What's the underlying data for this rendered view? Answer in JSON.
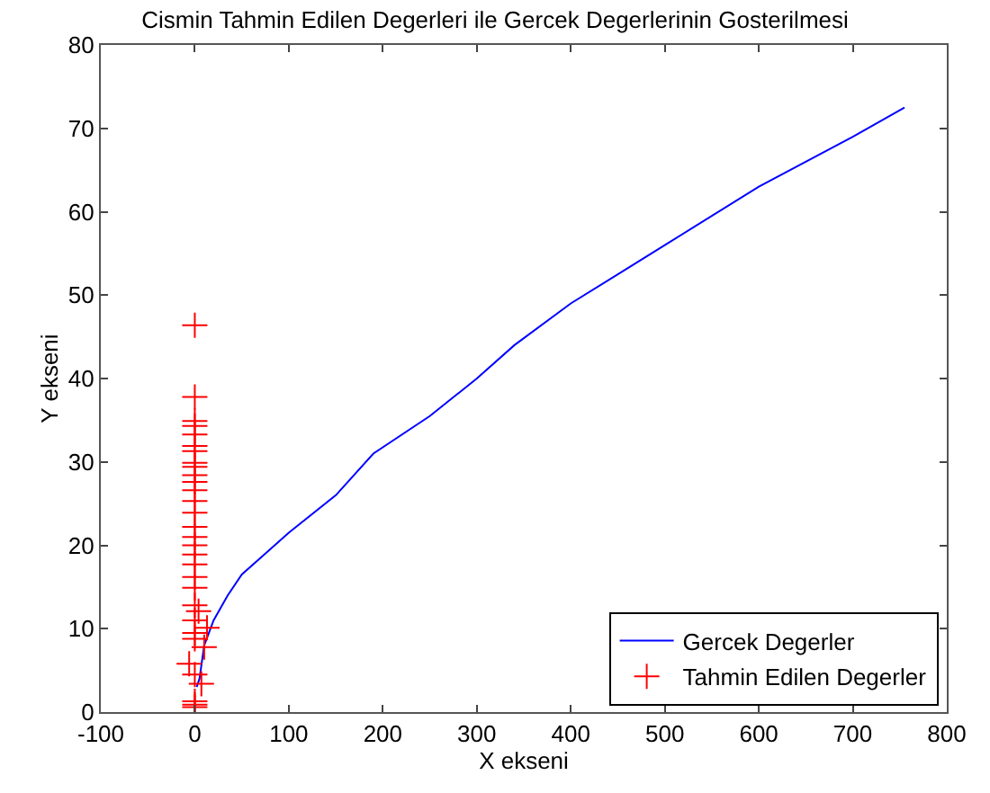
{
  "chart_data": {
    "type": "line",
    "title": "Cismin Tahmin Edilen Degerleri ile Gercek Degerlerinin Gosterilmesi",
    "xlabel": "X ekseni",
    "ylabel": "Y ekseni",
    "xlim": [
      -100,
      800
    ],
    "xticks": [
      -100,
      0,
      100,
      200,
      300,
      400,
      500,
      600,
      700,
      800
    ],
    "ylim": [
      0,
      80
    ],
    "yticks": [
      0,
      10,
      20,
      30,
      40,
      50,
      60,
      70,
      80
    ],
    "legend": "bottom right",
    "series": [
      {
        "name": "Gercek Degerler",
        "color": "#0000ff",
        "marker": "none",
        "line_style": "solid",
        "x": [
          2,
          5,
          10,
          20,
          35,
          50,
          75,
          100,
          150,
          190,
          250,
          300,
          340,
          400,
          450,
          500,
          600,
          700,
          755
        ],
        "values": [
          3,
          4,
          8,
          11,
          14,
          16.5,
          19,
          21.5,
          26,
          31,
          35.5,
          40,
          44,
          49,
          52.5,
          56,
          63,
          69,
          72.5
        ]
      },
      {
        "name": "Tahmin Edilen Degerler",
        "type": "scatter",
        "color": "#ff0000",
        "marker": "cross",
        "x": [
          0,
          0,
          0,
          0,
          0,
          0,
          0,
          0,
          0,
          0,
          0,
          0,
          0,
          0,
          0,
          0,
          0,
          0,
          0,
          0,
          0,
          4,
          0,
          13,
          0,
          10,
          -6,
          0,
          7,
          0,
          0,
          0,
          0,
          0
        ],
        "values": [
          46.4,
          37.8,
          34.9,
          34.3,
          33.3,
          31.9,
          31.3,
          29.9,
          29.4,
          28.4,
          27.6,
          26.6,
          25.3,
          23.9,
          22.2,
          21.0,
          20.0,
          18.9,
          17.7,
          16.2,
          14.9,
          12.1,
          12.8,
          10.1,
          11.0,
          7.8,
          5.8,
          9.5,
          3.4,
          8.8,
          4.5,
          1.3,
          0.9,
          0.6
        ]
      }
    ]
  }
}
